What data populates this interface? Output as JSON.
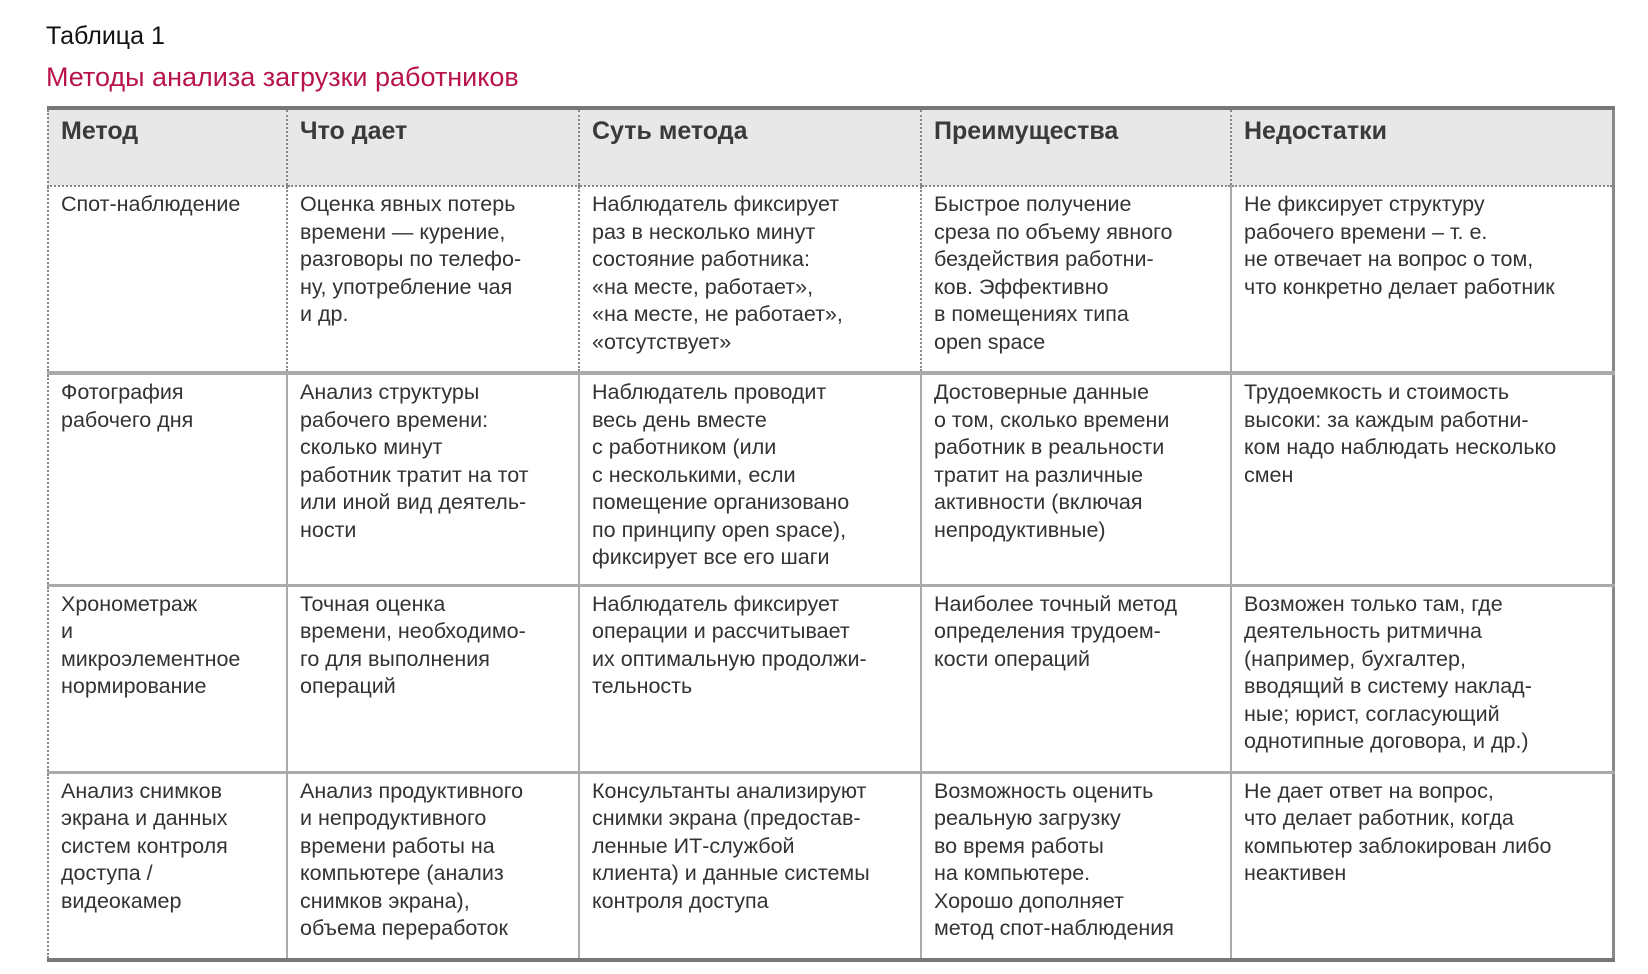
{
  "caption": "Таблица 1",
  "title": "Методы анализа загрузки работников",
  "colors": {
    "title": "#b8134e",
    "header_bg": "#e8e8e8",
    "text": "#333333"
  },
  "table": {
    "headers": [
      "Метод",
      "Что дает",
      "Суть метода",
      "Преимущества",
      "Недостатки"
    ],
    "rows": [
      [
        "Спот-наблюдение",
        "Оценка явных потерь\nвремени — курение,\nразговоры по телефо-\nну, употребление чая\nи др.",
        "Наблюдатель фиксирует\nраз в несколько минут\nсостояние работника:\n«на месте, работает»,\n«на месте, не работает»,\n«отсутствует»",
        "Быстрое получение\nсреза по объему явного\nбездействия работни-\nков. Эффективно\nв помещениях типа\nopen space",
        "Не фиксирует структуру\nрабочего времени – т. е.\nне отвечает на вопрос о том,\nчто конкретно делает работник"
      ],
      [
        "Фотография\nрабочего дня",
        "Анализ структуры\nрабочего времени:\nсколько минут\nработник тратит на тот\nили иной вид деятель-\nности",
        "Наблюдатель проводит\nвесь день вместе\nс работником (или\nс несколькими, если\nпомещение организовано\nпо принципу open space),\nфиксирует все его шаги",
        "Достоверные данные\nо том, сколько времени\nработник в реальности\nтратит на различные\nактивности (включая\nнепродуктивные)",
        "Трудоемкость и стоимость\nвысоки: за каждым работни-\nком надо наблюдать несколько\nсмен"
      ],
      [
        "Хронометраж\nи\nмикроэлементное\nнормирование",
        "Точная оценка\nвремени, необходимо-\nго для выполнения\nопераций",
        "Наблюдатель фиксирует\nоперации и рассчитывает\nих оптимальную продолжи-\nтельность",
        "Наиболее точный метод\nопределения трудоем-\nкости операций",
        "Возможен только там, где\nдеятельность ритмична\n(например, бухгалтер,\nвводящий в систему наклад-\nные; юрист, согласующий\nоднотипные договора, и др.)"
      ],
      [
        "Анализ снимков\nэкрана и данных\nсистем контроля\nдоступа /\nвидеокамер",
        "Анализ продуктивного\nи непродуктивного\nвремени работы на\nкомпьютере (анализ\nснимков экрана),\nобъема переработок",
        "Консультанты анализируют\nснимки экрана (предостав-\nленные ИТ-службой\nклиента) и данные системы\nконтроля доступа",
        "Возможность оценить\nреальную загрузку\nво время работы\nна компьютере.\nХорошо дополняет\nметод спот-наблюдения",
        "Не дает ответ на вопрос,\nчто делает работник, когда\nкомпьютер заблокирован либо\nнеактивен"
      ]
    ]
  }
}
